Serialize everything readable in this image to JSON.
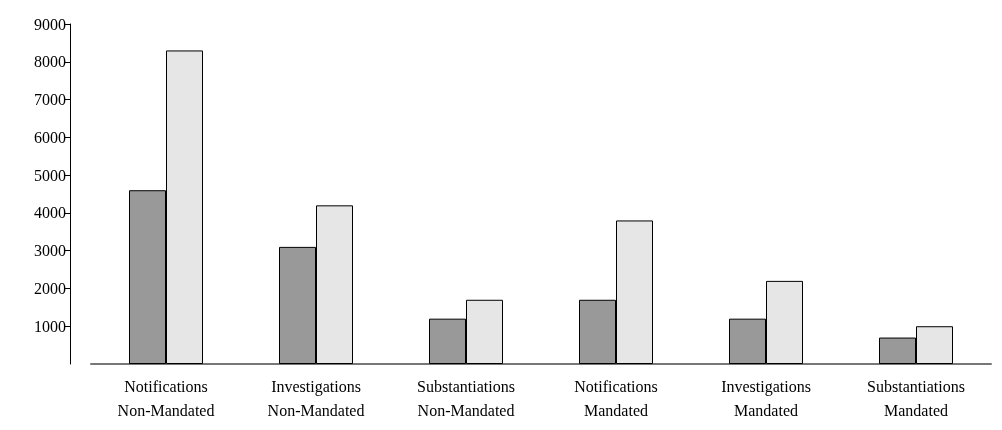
{
  "chart_data": {
    "type": "bar",
    "categories": [
      "Notifications\nNon-Mandated",
      "Investigations\nNon-Mandated",
      "Substantiations\nNon-Mandated",
      "Notifications\nMandated",
      "Investigations\nMandated",
      "Substantiations\nMandated"
    ],
    "series": [
      {
        "color": "#999999",
        "values": [
          4600,
          3100,
          1200,
          1700,
          1200,
          700
        ]
      },
      {
        "color": "#e6e6e6",
        "values": [
          8300,
          4200,
          1700,
          3800,
          2200,
          1000
        ]
      }
    ],
    "ylim": [
      0,
      9000
    ],
    "yticks": [
      1000,
      2000,
      3000,
      4000,
      5000,
      6000,
      7000,
      8000,
      9000
    ],
    "grid": false
  }
}
